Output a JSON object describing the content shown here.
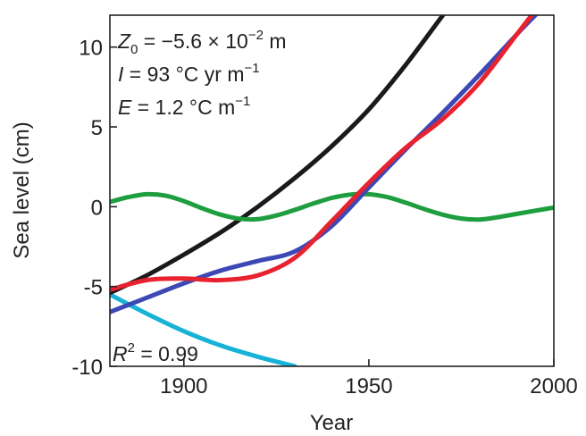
{
  "chart_data": {
    "type": "line",
    "xlabel": "Year",
    "ylabel": "Sea level (cm)",
    "xlim": [
      1880,
      2000
    ],
    "ylim": [
      -10,
      12
    ],
    "xticks": [
      "1900",
      "1950",
      "2000"
    ],
    "yticks": [
      "-10",
      "-5",
      "0",
      "5",
      "10"
    ],
    "grid": false,
    "annotations": {
      "z0_var": "Z",
      "z0_sub": "0",
      "z0_eq": " = −5.6 × 10",
      "z0_exp": "−2",
      "z0_unit": " m",
      "i_var": "I",
      "i_eq": " = 93 °C yr m",
      "i_exp": "−1",
      "e_var": "E",
      "e_eq": " = 1.2 °C m",
      "e_exp": "−1",
      "r2_var": "R",
      "r2_exp": "2",
      "r2_eq": " = 0.99"
    },
    "series": [
      {
        "color": "#1a1a1a",
        "x": [
          1880,
          1890,
          1900,
          1910,
          1920,
          1930,
          1940,
          1950,
          1960,
          1970
        ],
        "y": [
          -5.4,
          -4.3,
          -3.0,
          -1.6,
          0.0,
          1.8,
          3.8,
          6.1,
          8.9,
          12.0
        ]
      },
      {
        "color": "#3c49b5",
        "x": [
          1880,
          1890,
          1900,
          1910,
          1920,
          1930,
          1940,
          1950,
          1960,
          1970,
          1980,
          1990,
          1995
        ],
        "y": [
          -6.6,
          -5.7,
          -4.8,
          -4.0,
          -3.4,
          -2.8,
          -1.2,
          1.2,
          3.6,
          5.9,
          8.3,
          10.8,
          12.0
        ]
      },
      {
        "color": "#e8222e",
        "x": [
          1880,
          1890,
          1900,
          1910,
          1920,
          1930,
          1940,
          1950,
          1960,
          1970,
          1980,
          1990,
          1994
        ],
        "y": [
          -5.2,
          -4.6,
          -4.5,
          -4.6,
          -4.3,
          -3.2,
          -0.9,
          1.5,
          3.7,
          5.5,
          7.8,
          10.8,
          12.0
        ]
      },
      {
        "color": "#1e9e3e",
        "x": [
          1880,
          1885,
          1890,
          1895,
          1900,
          1905,
          1910,
          1915,
          1920,
          1925,
          1930,
          1935,
          1940,
          1945,
          1950,
          1955,
          1960,
          1965,
          1970,
          1975,
          1980,
          1985,
          1990,
          1995,
          2000
        ],
        "y": [
          0.3,
          0.6,
          0.78,
          0.7,
          0.35,
          -0.1,
          -0.5,
          -0.75,
          -0.78,
          -0.55,
          -0.2,
          0.2,
          0.55,
          0.76,
          0.78,
          0.6,
          0.25,
          -0.15,
          -0.5,
          -0.74,
          -0.8,
          -0.65,
          -0.45,
          -0.25,
          -0.05
        ]
      },
      {
        "color": "#17b3d6",
        "x": [
          1880,
          1890,
          1900,
          1910,
          1920,
          1930
        ],
        "y": [
          -5.5,
          -6.7,
          -7.8,
          -8.7,
          -9.4,
          -10.0
        ]
      }
    ]
  }
}
